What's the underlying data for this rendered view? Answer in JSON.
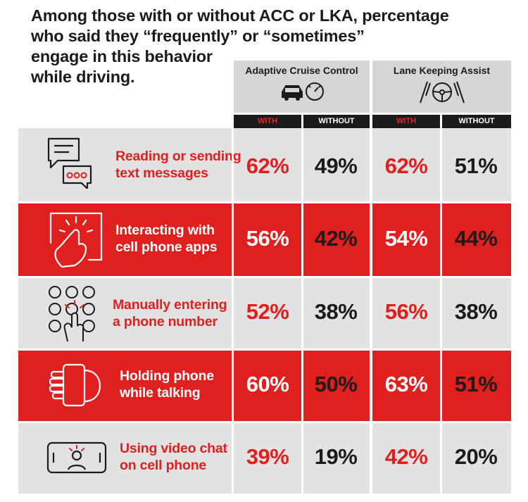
{
  "chart_data": {
    "type": "table",
    "title_lines": [
      "Among those with or without ACC or LKA, percentage",
      "who said they “frequently” or “sometimes”",
      "engage in this behavior",
      "while driving."
    ],
    "groups": [
      {
        "name": "Adaptive Cruise Control",
        "icon": "car-speedometer-icon",
        "subcolumns": [
          "WITH",
          "WITHOUT"
        ]
      },
      {
        "name": "Lane Keeping Assist",
        "icon": "steering-wheel-lanes-icon",
        "subcolumns": [
          "WITH",
          "WITHOUT"
        ]
      }
    ],
    "rows": [
      {
        "label_lines": [
          "Reading or sending",
          "text messages"
        ],
        "icon": "chat-bubbles-icon",
        "values": [
          "62%",
          "49%",
          "62%",
          "51%"
        ]
      },
      {
        "label_lines": [
          "Interacting with",
          "cell phone apps"
        ],
        "icon": "finger-tap-icon",
        "values": [
          "56%",
          "42%",
          "54%",
          "44%"
        ]
      },
      {
        "label_lines": [
          "Manually entering",
          "a phone number"
        ],
        "icon": "keypad-icon",
        "values": [
          "52%",
          "38%",
          "56%",
          "38%"
        ]
      },
      {
        "label_lines": [
          "Holding phone",
          "while talking"
        ],
        "icon": "hand-holding-phone-icon",
        "values": [
          "60%",
          "50%",
          "63%",
          "51%"
        ]
      },
      {
        "label_lines": [
          "Using video chat",
          "on cell phone"
        ],
        "icon": "video-chat-icon",
        "values": [
          "39%",
          "19%",
          "42%",
          "20%"
        ]
      }
    ],
    "row_backgrounds": [
      "gray",
      "red",
      "gray",
      "red",
      "gray"
    ],
    "colors": {
      "accent_red": "#e0201f",
      "gray": "#e2e2e2",
      "dark": "#1b1b1b",
      "header_gray": "#d6d6d6"
    }
  }
}
